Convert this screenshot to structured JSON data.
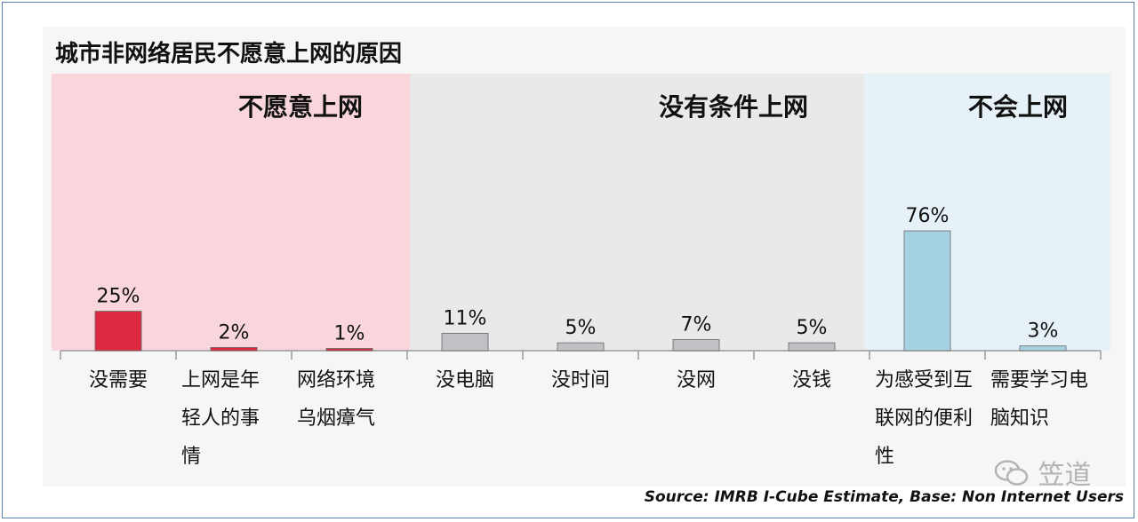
{
  "title": "城市非网络居民不愿意上网的原因",
  "source": "Source: IMRB I-Cube  Estimate, Base: Non Internet Users",
  "watermark": "笠道",
  "chart_data": {
    "type": "bar",
    "groups": [
      {
        "label": "不愿意上网",
        "color": "#f9d5dc",
        "category_range": [
          0,
          2
        ]
      },
      {
        "label": "没有条件上网",
        "color": "#e9e9ea",
        "category_range": [
          3,
          6
        ]
      },
      {
        "label": "不会上网",
        "color": "#e7f2f8",
        "category_range": [
          7,
          8
        ]
      }
    ],
    "categories": [
      [
        "没需要"
      ],
      [
        "上网是年",
        "轻人的事",
        "情"
      ],
      [
        "网络环境",
        "乌烟瘴气"
      ],
      [
        "没电脑"
      ],
      [
        "没时间"
      ],
      [
        "没网"
      ],
      [
        "没钱"
      ],
      [
        "为感受到互",
        "联网的便利",
        "性"
      ],
      [
        "需要学习电",
        "脑知识"
      ]
    ],
    "values": [
      25,
      2,
      1,
      11,
      5,
      7,
      5,
      76,
      3
    ],
    "data_labels": [
      "25%",
      "2%",
      "1%",
      "11%",
      "5%",
      "7%",
      "5%",
      "76%",
      "3%"
    ],
    "bar_colors": [
      "#dc2a41",
      "#dc2a41",
      "#dc2a41",
      "#c0c1c5",
      "#c0c1c5",
      "#c0c1c5",
      "#c0c1c5",
      "#a6d3e1",
      "#a6d3e1"
    ],
    "bar_outline": "#666666",
    "ylim": [
      0,
      100
    ],
    "xlabel": "",
    "ylabel": "",
    "grid": false,
    "legend": "none"
  }
}
